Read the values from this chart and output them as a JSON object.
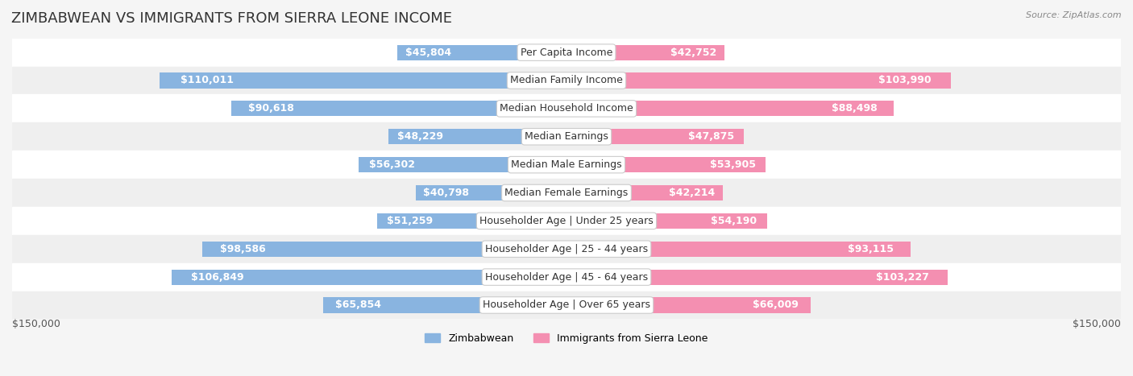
{
  "title": "ZIMBABWEAN VS IMMIGRANTS FROM SIERRA LEONE INCOME",
  "source": "Source: ZipAtlas.com",
  "categories": [
    "Per Capita Income",
    "Median Family Income",
    "Median Household Income",
    "Median Earnings",
    "Median Male Earnings",
    "Median Female Earnings",
    "Householder Age | Under 25 years",
    "Householder Age | 25 - 44 years",
    "Householder Age | 45 - 64 years",
    "Householder Age | Over 65 years"
  ],
  "zimbabwean": [
    45804,
    110011,
    90618,
    48229,
    56302,
    40798,
    51259,
    98586,
    106849,
    65854
  ],
  "sierra_leone": [
    42752,
    103990,
    88498,
    47875,
    53905,
    42214,
    54190,
    93115,
    103227,
    66009
  ],
  "zimbabwean_labels": [
    "$45,804",
    "$110,011",
    "$90,618",
    "$48,229",
    "$56,302",
    "$40,798",
    "$51,259",
    "$98,586",
    "$106,849",
    "$65,854"
  ],
  "sierra_leone_labels": [
    "$42,752",
    "$103,990",
    "$88,498",
    "$47,875",
    "$53,905",
    "$42,214",
    "$54,190",
    "$93,115",
    "$103,227",
    "$66,009"
  ],
  "zimbabwean_color": "#89b4e0",
  "zimbabwean_color_dark": "#6fa8d8",
  "sierra_leone_color": "#f48fb1",
  "sierra_leone_color_dark": "#ef6694",
  "background_color": "#f5f5f5",
  "row_bg_color": "#ffffff",
  "row_alt_bg_color": "#f0f0f0",
  "max_value": 150000,
  "legend_zimbabwean": "Zimbabwean",
  "legend_sierra_leone": "Immigrants from Sierra Leone",
  "x_axis_label_left": "$150,000",
  "x_axis_label_right": "$150,000",
  "bar_height": 0.55,
  "label_fontsize": 9,
  "title_fontsize": 13,
  "category_fontsize": 9
}
